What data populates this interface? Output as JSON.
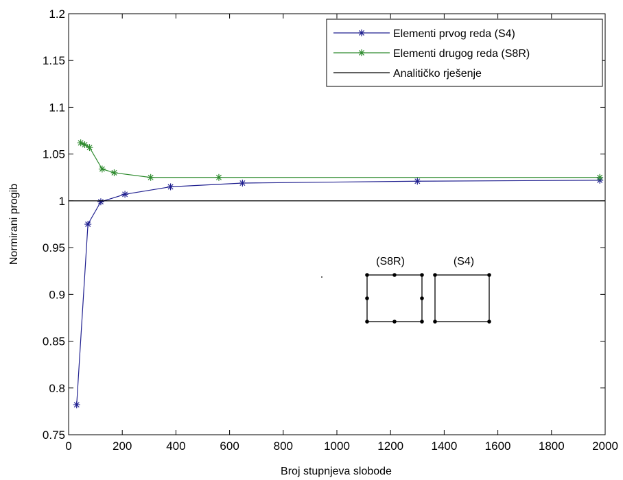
{
  "chart_data": {
    "type": "line",
    "xlabel": "Broj stupnjeva slobode",
    "ylabel": "Normirani progib",
    "xlim": [
      0,
      2000
    ],
    "ylim": [
      0.75,
      1.2
    ],
    "grid": false,
    "legend_position": "top-right",
    "x_ticks": [
      0,
      200,
      400,
      600,
      800,
      1000,
      1200,
      1400,
      1600,
      1800,
      2000
    ],
    "y_ticks": [
      0.75,
      0.8,
      0.85,
      0.9,
      0.95,
      1,
      1.05,
      1.1,
      1.15,
      1.2
    ],
    "x_tick_labels": [
      "0",
      "200",
      "400",
      "600",
      "800",
      "1000",
      "1200",
      "1400",
      "1600",
      "1800",
      "2000"
    ],
    "y_tick_labels": [
      "0.75",
      "0.8",
      "0.85",
      "0.9",
      "0.95",
      "1",
      "1.05",
      "1.1",
      "1.15",
      "1.2"
    ],
    "series": [
      {
        "name": "Elementi prvog reda (S4)",
        "color": "#1f1f8f",
        "marker": "asterisk",
        "x": [
          30,
          72,
          120,
          210,
          380,
          648,
          1300,
          1980
        ],
        "y": [
          0.782,
          0.975,
          0.999,
          1.007,
          1.015,
          1.019,
          1.021,
          1.022
        ]
      },
      {
        "name": "Elementi drugog reda (S8R)",
        "color": "#2e8b2e",
        "marker": "asterisk",
        "x": [
          45,
          60,
          78,
          125,
          170,
          306,
          560,
          1980
        ],
        "y": [
          1.062,
          1.06,
          1.057,
          1.034,
          1.03,
          1.025,
          1.025,
          1.025
        ]
      },
      {
        "name": "Analitičko rješenje",
        "color": "#000000",
        "marker": "none",
        "x": [
          0,
          2000
        ],
        "y": [
          1,
          1
        ]
      }
    ],
    "annotations": [
      {
        "text": "(S8R)",
        "element": "8-node element sketch"
      },
      {
        "text": "(S4)",
        "element": "4-node element sketch"
      }
    ]
  }
}
